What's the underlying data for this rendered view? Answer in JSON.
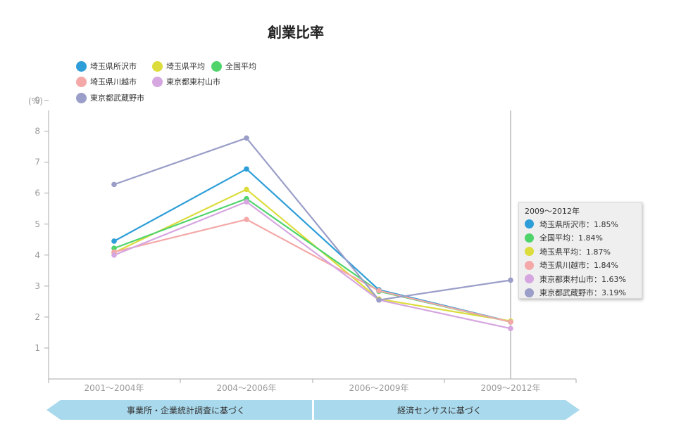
{
  "chart_data": {
    "type": "line",
    "title": "創業比率",
    "ylabel": "(%)",
    "ylim": [
      0,
      9
    ],
    "yticks": [
      1,
      2,
      3,
      4,
      5,
      6,
      7,
      8,
      9
    ],
    "grid": false,
    "legend_position": "top-left",
    "categories": [
      "2001～2004年",
      "2004～2006年",
      "2006～2009年",
      "2009～2012年"
    ],
    "series": [
      {
        "name": "埼玉県所沢市",
        "color": "#2e9ed8",
        "values": [
          4.45,
          6.78,
          2.88,
          1.85
        ]
      },
      {
        "name": "埼玉県平均",
        "color": "#dcdc3c",
        "values": [
          4.08,
          6.12,
          2.58,
          1.87
        ]
      },
      {
        "name": "全国平均",
        "color": "#4fd46c",
        "values": [
          4.22,
          5.82,
          2.83,
          1.84
        ]
      },
      {
        "name": "埼玉県川越市",
        "color": "#f4a8a8",
        "values": [
          4.1,
          5.15,
          2.85,
          1.84
        ]
      },
      {
        "name": "東京都東村山市",
        "color": "#d6a6e0",
        "values": [
          4.0,
          5.72,
          2.55,
          1.63
        ]
      },
      {
        "name": "東京都武蔵野市",
        "color": "#9a9ec8",
        "values": [
          6.28,
          7.78,
          2.55,
          3.19
        ]
      }
    ],
    "tooltip": {
      "title": "2009～2012年",
      "rows": [
        {
          "name": "埼玉県所沢市",
          "text": "埼玉県所沢市：1.85%",
          "color": "#2e9ed8"
        },
        {
          "name": "全国平均",
          "text": "全国平均：1.84%",
          "color": "#4fd46c"
        },
        {
          "name": "埼玉県平均",
          "text": "埼玉県平均：1.87%",
          "color": "#dcdc3c"
        },
        {
          "name": "埼玉県川越市",
          "text": "埼玉県川越市：1.84%",
          "color": "#f4a8a8"
        },
        {
          "name": "東京都東村山市",
          "text": "東京都東村山市：1.63%",
          "color": "#d6a6e0"
        },
        {
          "name": "東京都武蔵野市",
          "text": "東京都武蔵野市：3.19%",
          "color": "#9a9ec8"
        }
      ]
    },
    "bottom_bands": [
      {
        "label": "事業所・企業統計調査に基づく"
      },
      {
        "label": "経済センサスに基づく"
      }
    ],
    "band_color": "#a9d9ec"
  }
}
